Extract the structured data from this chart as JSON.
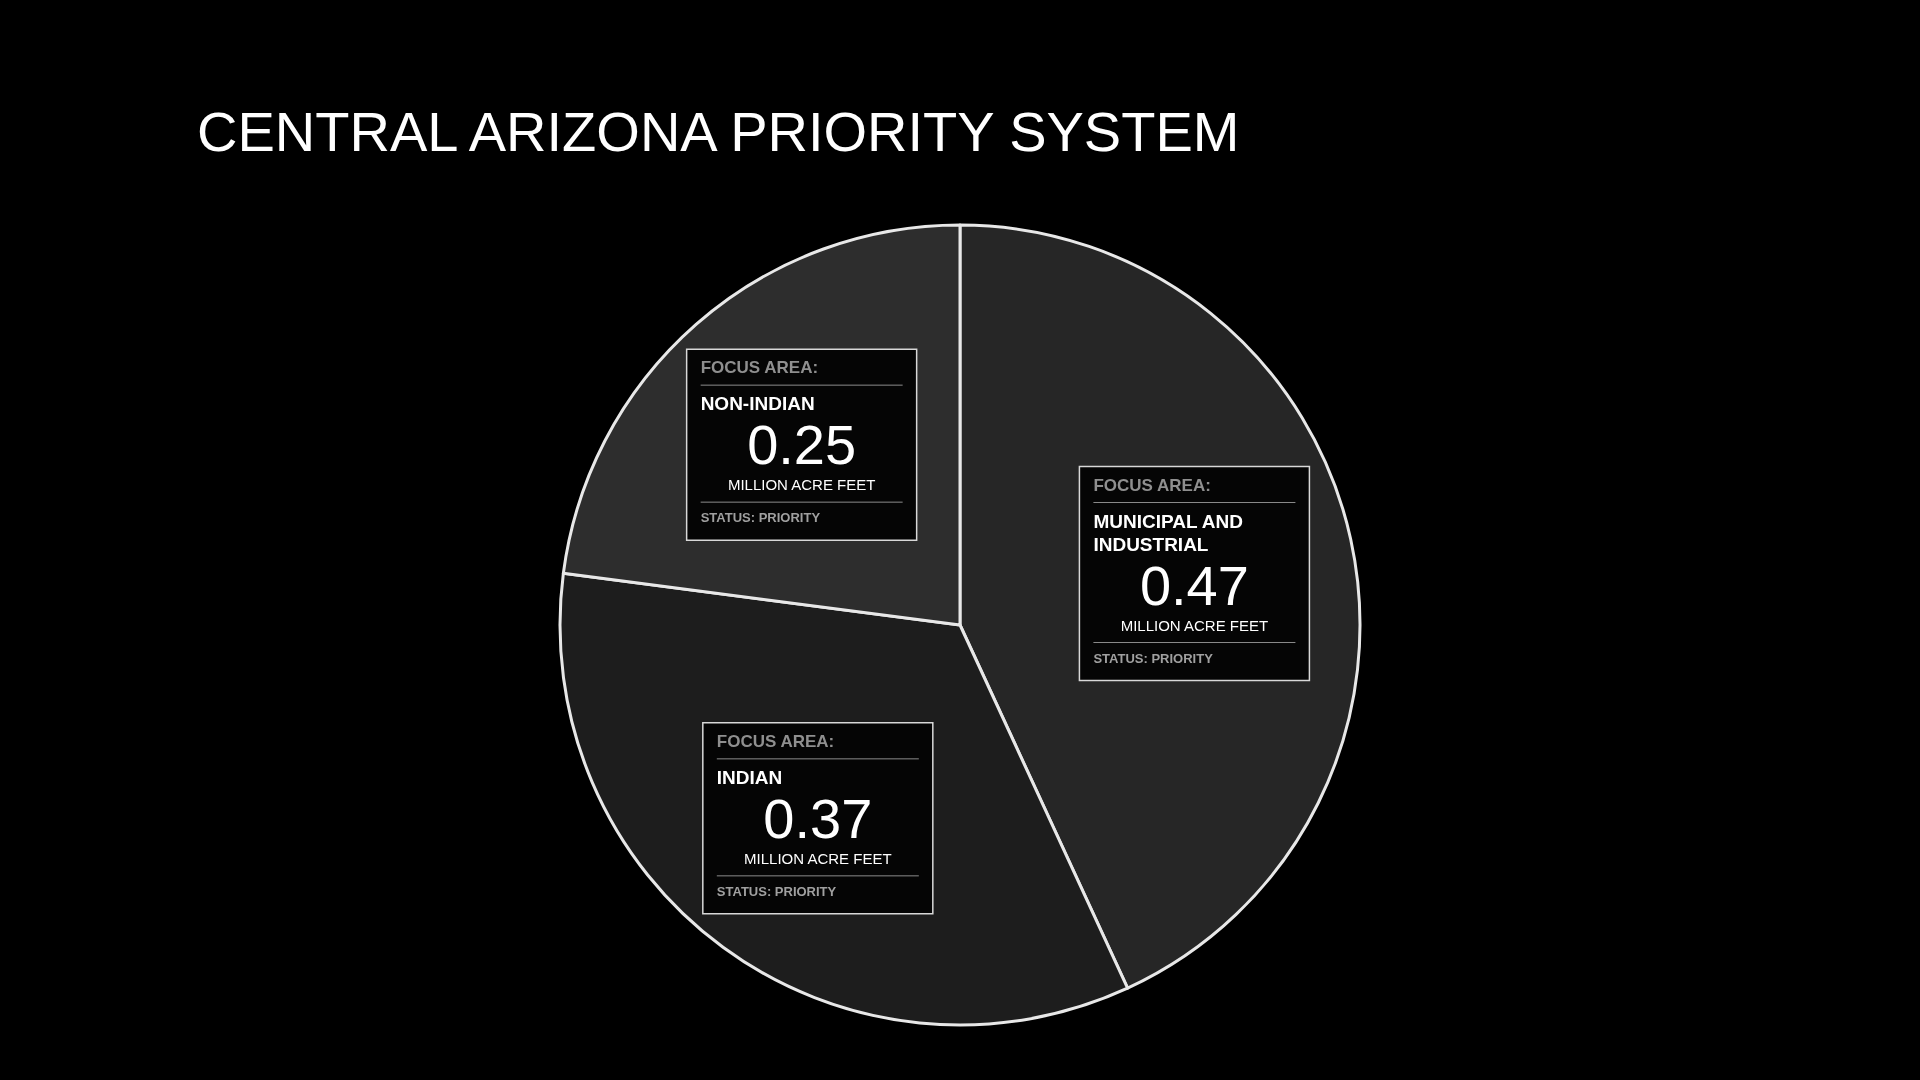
{
  "chart_data": {
    "type": "pie",
    "title": "CENTRAL ARIZONA PRIORITY SYSTEM",
    "categories": [
      "MUNICIPAL AND INDUSTRIAL",
      "INDIAN",
      "NON-INDIAN"
    ],
    "values": [
      0.47,
      0.37,
      0.25
    ],
    "colors": [
      "#262626",
      "#1d1d1d",
      "#2d2d2d"
    ],
    "data_labels": true,
    "annotations": [
      "FOCUS AREA:",
      "MILLION ACRE FEET",
      "STATUS: PRIORITY"
    ]
  }
}
